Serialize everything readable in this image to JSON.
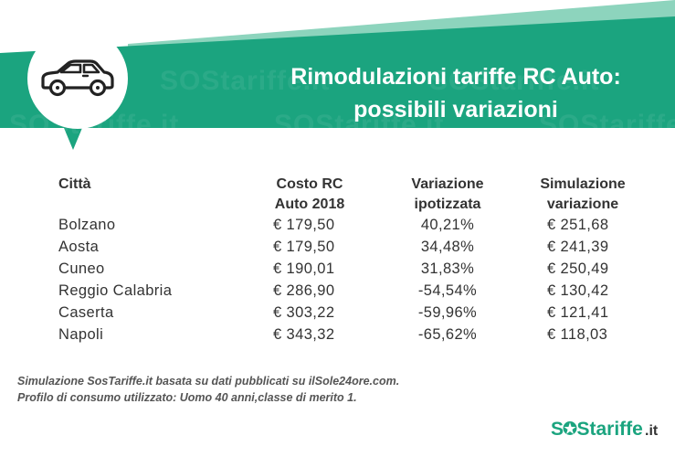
{
  "header": {
    "title_line1": "Rimodulazioni tariffe RC Auto:",
    "title_line2": "possibili variazioni",
    "watermark_text": "SOStariffe.it"
  },
  "colors": {
    "primary_green": "#1ba47f",
    "light_stripe": "#7fceb5",
    "text_dark": "#333333"
  },
  "icon": "car-icon",
  "table": {
    "headers": {
      "city": "Città",
      "cost_line1": "Costo RC",
      "cost_line2": "Auto 2018",
      "var_line1": "Variazione",
      "var_line2": "ipotizzata",
      "sim_line1": "Simulazione",
      "sim_line2": "variazione"
    },
    "rows": [
      {
        "city": "Bolzano",
        "cost": "€ 179,50",
        "variation": "40,21%",
        "simulation": "€ 251,68"
      },
      {
        "city": "Aosta",
        "cost": "€ 179,50",
        "variation": "34,48%",
        "simulation": "€ 241,39"
      },
      {
        "city": "Cuneo",
        "cost": "€ 190,01",
        "variation": "31,83%",
        "simulation": "€ 250,49"
      },
      {
        "city": "Reggio Calabria",
        "cost": "€ 286,90",
        "variation": "-54,54%",
        "simulation": "€ 130,42"
      },
      {
        "city": "Caserta",
        "cost": "€ 303,22",
        "variation": "-59,96%",
        "simulation": "€ 121,41"
      },
      {
        "city": "Napoli",
        "cost": "€ 343,32",
        "variation": "-65,62%",
        "simulation": "€ 118,03"
      }
    ]
  },
  "footnote": {
    "line1": "Simulazione SosTariffe.it basata su dati pubblicati su ilSole24ore.com.",
    "line2": "Profilo di consumo utilizzato: Uomo 40 anni,classe di merito 1."
  },
  "logo": {
    "text_sos": "S",
    "text_rest": "Stariffe",
    "text_tld": ".it"
  }
}
